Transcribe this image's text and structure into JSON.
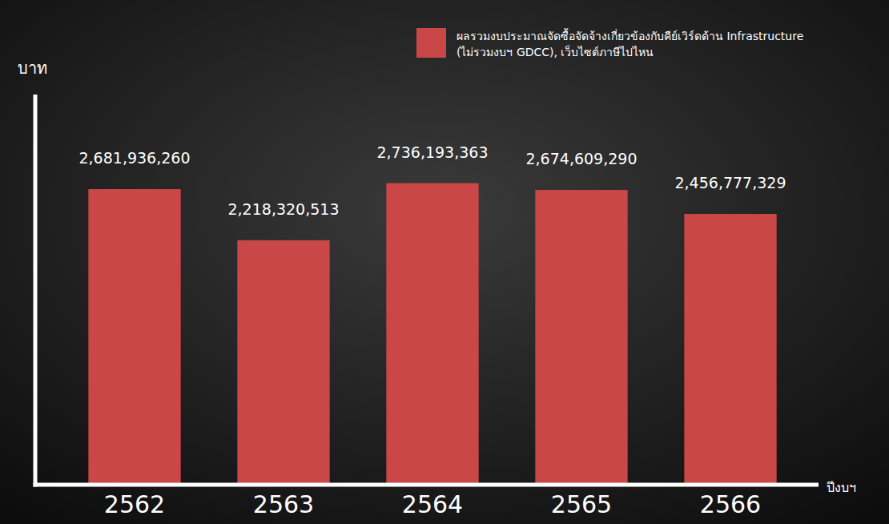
{
  "chart_data": {
    "type": "bar",
    "y_label": "บาท",
    "x_label": "ปีงบฯ",
    "categories": [
      "2562",
      "2563",
      "2564",
      "2565",
      "2566"
    ],
    "series": [
      {
        "name": "ผลรวมงบประมาณจัดซื้อจัดจ้างเกี่ยวข้องกับคีย์เวิร์ดด้าน Infrastructure (ไม่รวมงบฯ GDCC), เว็บไซต์ภาษีไปไหน",
        "color": "#c94747",
        "values": [
          2681936260,
          2218320513,
          2736193363,
          2674609290,
          2456777329
        ],
        "value_labels": [
          "2,681,936,260",
          "2,218,320,513",
          "2,736,193,363",
          "2,674,609,290",
          "2,456,777,329"
        ]
      }
    ],
    "ylim": [
      0,
      3540000000
    ],
    "grid": false,
    "legend": "top-right",
    "data_labels": true,
    "tick_labels": "x"
  }
}
